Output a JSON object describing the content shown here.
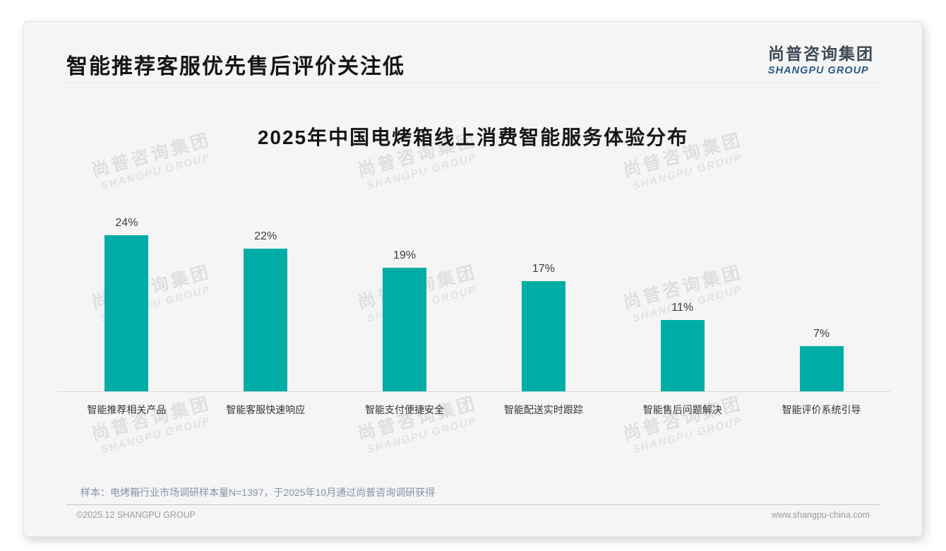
{
  "header": {
    "title": "智能推荐客服优先售后评价关注低"
  },
  "logo": {
    "cn": "尚普咨询集团",
    "en": "SHANGPU GROUP"
  },
  "watermark": {
    "cn": "尚普咨询集团",
    "en": "SHANGPU GROUP"
  },
  "chart_data": {
    "type": "bar",
    "title": "2025年中国电烤箱线上消费智能服务体验分布",
    "categories": [
      "智能推荐相关产品",
      "智能客服快速响应",
      "智能支付便捷安全",
      "智能配送实时跟踪",
      "智能售后问题解决",
      "智能评价系统引导"
    ],
    "values": [
      24,
      22,
      19,
      17,
      11,
      7
    ],
    "value_labels": [
      "24%",
      "22%",
      "19%",
      "17%",
      "11%",
      "7%"
    ],
    "unit": "%",
    "bar_color": "#00ADA6",
    "ylim": [
      0,
      26
    ],
    "grid": false,
    "legend": null,
    "xlabel": "",
    "ylabel": ""
  },
  "footnote": "样本：电烤箱行业市场调研样本量N=1397，于2025年10月通过尚普咨询调研获得",
  "footer": {
    "left": "©2025.12 SHANGPU GROUP",
    "right": "www.shangpu-china.com"
  },
  "colors": {
    "accent_teal": "#00ADA6",
    "logo_blue": "#2B5C8A",
    "footnote_slate": "#8593A9",
    "card_background": "#F5F5F5"
  }
}
